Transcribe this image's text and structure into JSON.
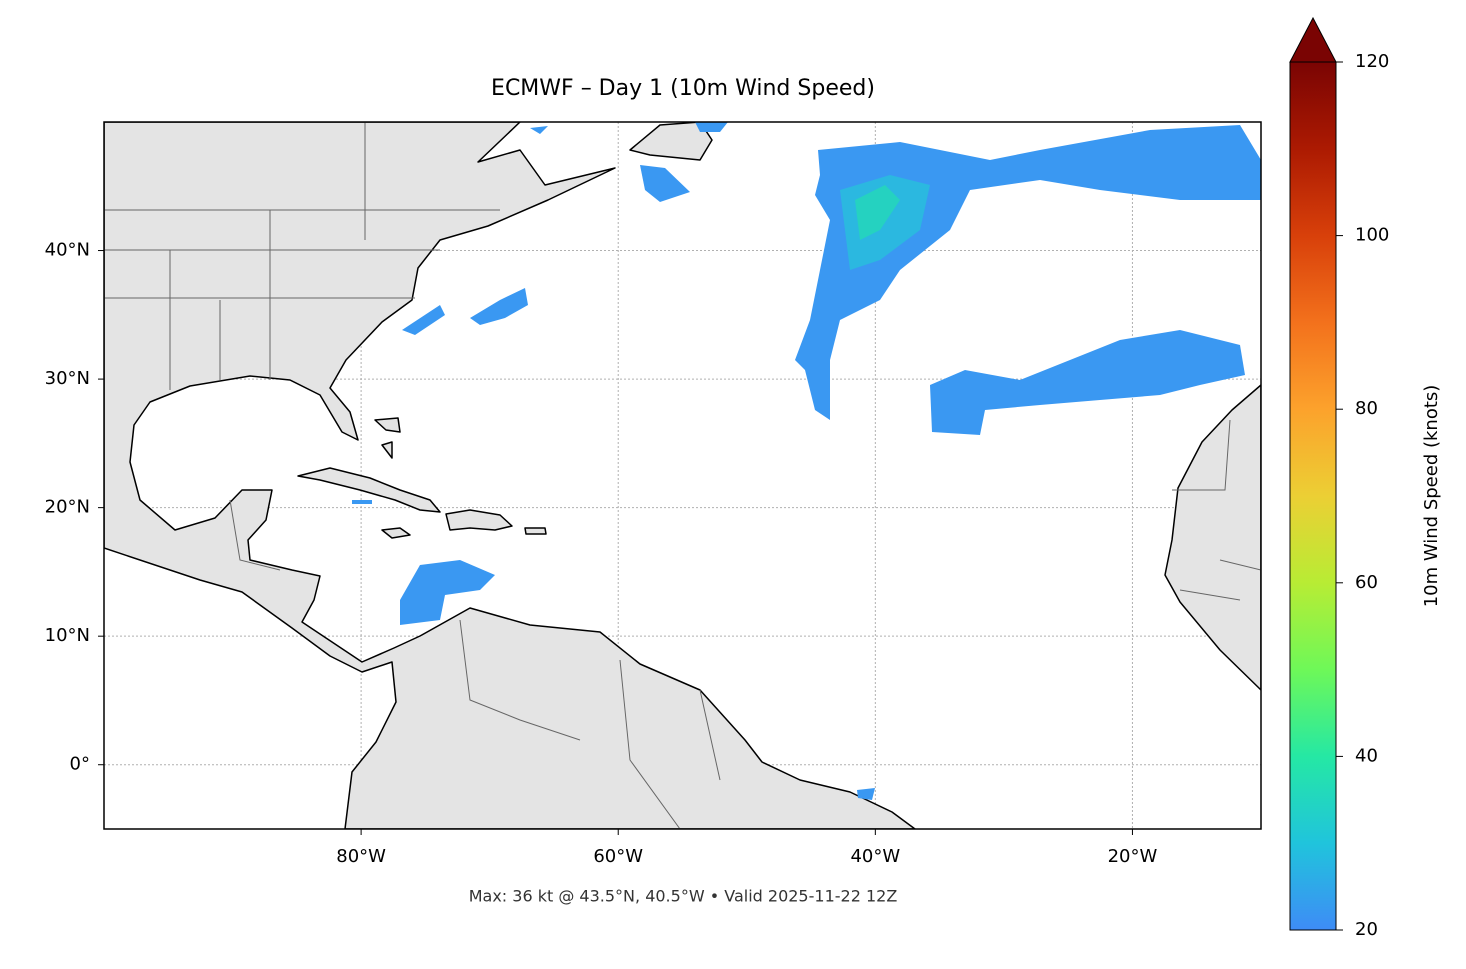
{
  "title": "ECMWF – Day 1 (10m Wind Speed)",
  "map": {
    "xlim": [
      -100,
      -10
    ],
    "ylim": [
      -5,
      50
    ],
    "xticks": [
      {
        "value": -80,
        "label": "80°W"
      },
      {
        "value": -60,
        "label": "60°W"
      },
      {
        "value": -40,
        "label": "40°W"
      },
      {
        "value": -20,
        "label": "20°W"
      }
    ],
    "yticks": [
      {
        "value": 0,
        "label": "0°"
      },
      {
        "value": 10,
        "label": "10°N"
      },
      {
        "value": 20,
        "label": "20°N"
      },
      {
        "value": 30,
        "label": "30°N"
      },
      {
        "value": 40,
        "label": "40°N"
      }
    ],
    "grid": true
  },
  "colorbar": {
    "label": "10m Wind Speed (knots)",
    "lim": [
      20,
      120
    ],
    "ticks": [
      20,
      40,
      60,
      80,
      100,
      120
    ],
    "extend": "max"
  },
  "footer": "Max: 36 kt @ 43.5°N, 40.5°W • Valid 2025-11-22 12Z"
}
